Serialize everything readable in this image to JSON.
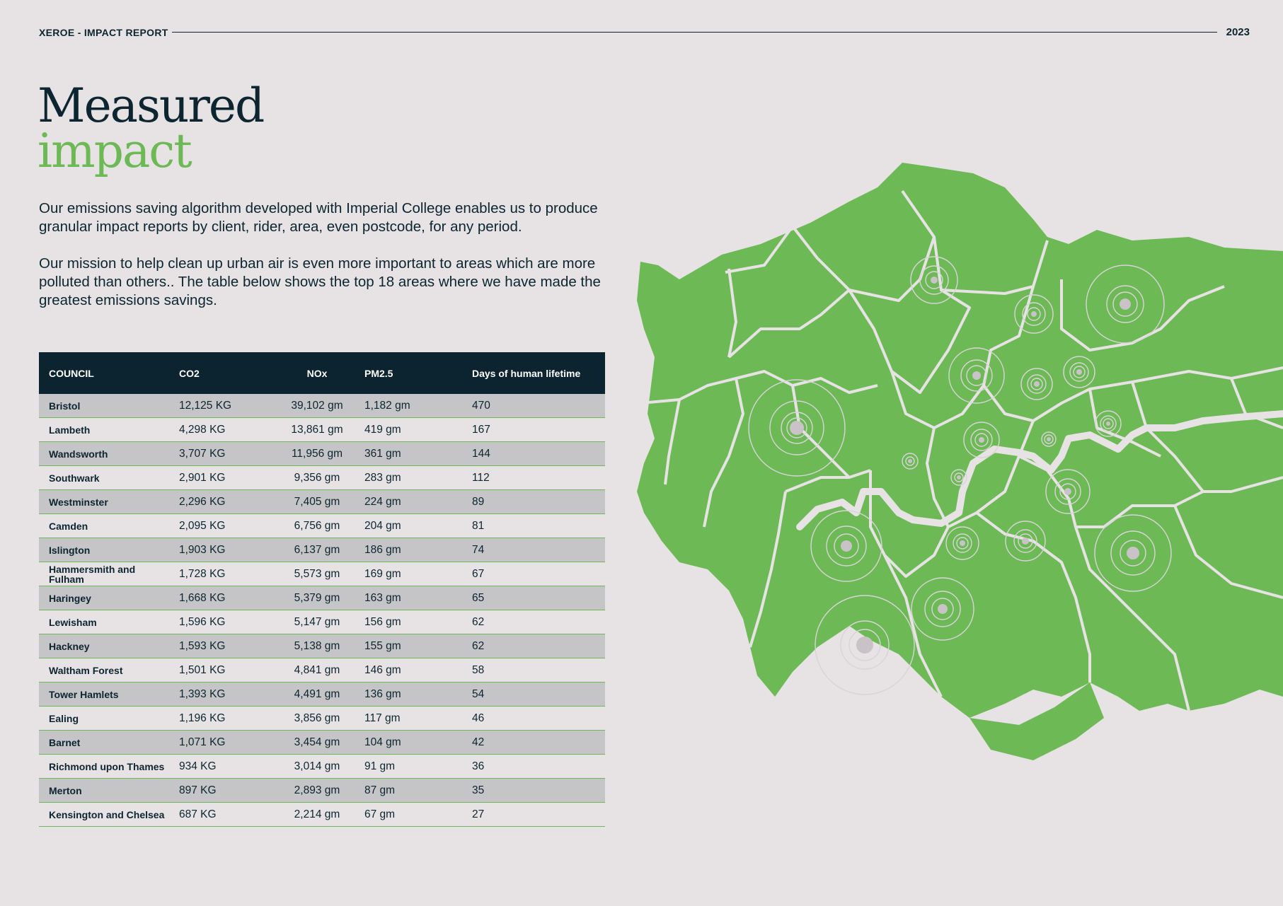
{
  "header": {
    "brand": "XEROE - IMPACT REPORT",
    "year": "2023"
  },
  "title": {
    "line1": "Measured",
    "line2": "impact"
  },
  "intro": {
    "para1": "Our emissions saving algorithm developed with Imperial College enables us to produce granular impact reports by client, rider, area, even postcode, for any period.",
    "para2": "Our mission to help clean up urban air is even more important to areas which are more polluted than others.. The table below shows the top 18 areas where we have made the greatest emissions savings."
  },
  "table": {
    "headers": [
      "COUNCIL",
      "CO2",
      "NOx",
      "PM2.5",
      "Days of human lifetime"
    ],
    "rows": [
      [
        "Bristol",
        "12,125 KG",
        "39,102 gm",
        "1,182 gm",
        "470"
      ],
      [
        "Lambeth",
        "4,298 KG",
        "13,861 gm",
        "419 gm",
        "167"
      ],
      [
        "Wandsworth",
        "3,707 KG",
        "11,956 gm",
        "361 gm",
        "144"
      ],
      [
        "Southwark",
        "2,901 KG",
        "9,356 gm",
        "283 gm",
        "112"
      ],
      [
        "Westminster",
        "2,296 KG",
        "7,405 gm",
        "224 gm",
        "89"
      ],
      [
        "Camden",
        "2,095 KG",
        "6,756 gm",
        "204 gm",
        "81"
      ],
      [
        "Islington",
        "1,903 KG",
        "6,137 gm",
        "186 gm",
        "74"
      ],
      [
        "Hammersmith and Fulham",
        "1,728 KG",
        "5,573 gm",
        "169 gm",
        "67"
      ],
      [
        "Haringey",
        "1,668 KG",
        "5,379 gm",
        "163 gm",
        "65"
      ],
      [
        "Lewisham",
        "1,596 KG",
        "5,147 gm",
        "156 gm",
        "62"
      ],
      [
        "Hackney",
        "1,593 KG",
        "5,138 gm",
        "155 gm",
        "62"
      ],
      [
        "Waltham Forest",
        "1,501 KG",
        "4,841 gm",
        "146 gm",
        "58"
      ],
      [
        "Tower Hamlets",
        "1,393 KG",
        "4,491 gm",
        "136 gm",
        "54"
      ],
      [
        "Ealing",
        "1,196 KG",
        "3,856 gm",
        "117 gm",
        "46"
      ],
      [
        "Barnet",
        "1,071 KG",
        "3,454 gm",
        "104 gm",
        "42"
      ],
      [
        "Richmond upon Thames",
        "934 KG",
        "3,014 gm",
        "91 gm",
        "36"
      ],
      [
        "Merton",
        "897 KG",
        "2,893 gm",
        "87 gm",
        "35"
      ],
      [
        "Kensington and Chelsea",
        "687 KG",
        "2,214 gm",
        "67 gm",
        "27"
      ]
    ]
  },
  "colors": {
    "navy": "#0b2430",
    "green": "#6cb955",
    "background": "#e7e3e4",
    "row_alt": "#c5c4c6"
  }
}
